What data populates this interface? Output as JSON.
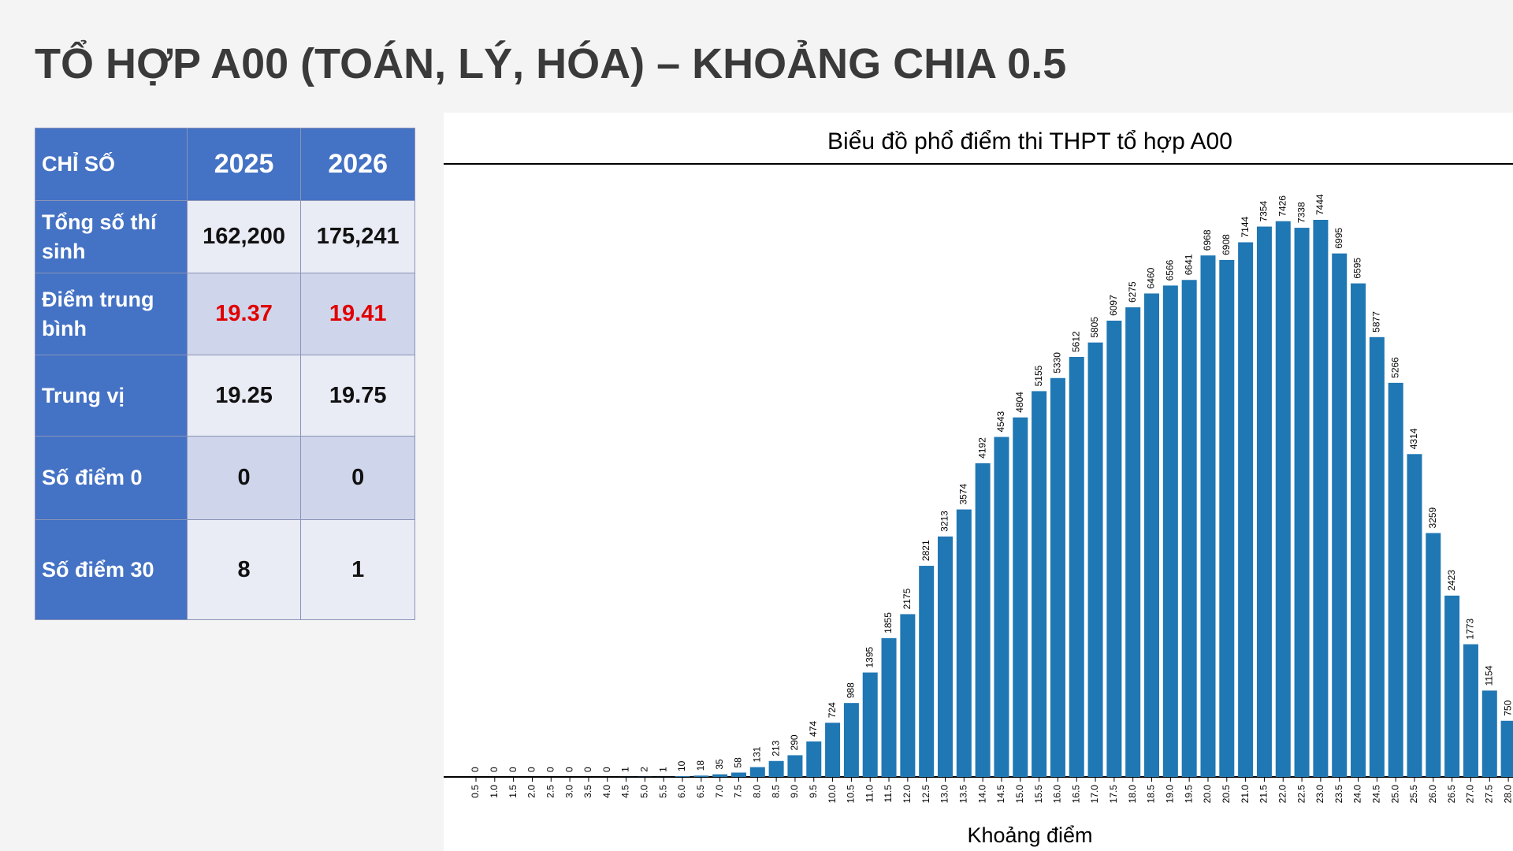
{
  "title": "TỔ HỢP A00 (TOÁN, LÝ, HÓA) – KHOẢNG CHIA 0.5",
  "table": {
    "header": [
      "CHỈ SỐ",
      "2025",
      "2026"
    ],
    "rows": [
      [
        "Tổng số thí sinh",
        "162,200",
        "175,241"
      ],
      [
        "Điểm trung bình",
        "19.37",
        "19.41"
      ],
      [
        "Trung vị",
        "19.25",
        "19.75"
      ],
      [
        "Số điểm 0",
        "0",
        "0"
      ],
      [
        "Số điểm 30",
        "8",
        "1"
      ]
    ]
  },
  "chart_data": {
    "type": "bar",
    "title": "Biểu đồ phổ điểm thi THPT tổ hợp A00",
    "x_label": "Khoảng điểm",
    "color": "#1f77b4",
    "categories": [
      "0.5",
      "1.0",
      "1.5",
      "2.0",
      "2.5",
      "3.0",
      "3.5",
      "4.0",
      "4.5",
      "5.0",
      "5.5",
      "6.0",
      "6.5",
      "7.0",
      "7.5",
      "8.0",
      "8.5",
      "9.0",
      "9.5",
      "10.0",
      "10.5",
      "11.0",
      "11.5",
      "12.0",
      "12.5",
      "13.0",
      "13.5",
      "14.0",
      "14.5",
      "15.0",
      "15.5",
      "16.0",
      "16.5",
      "17.0",
      "17.5",
      "18.0",
      "18.5",
      "19.0",
      "19.5",
      "20.0",
      "20.5",
      "21.0",
      "21.5",
      "22.0",
      "22.5",
      "23.0",
      "23.5",
      "24.0",
      "24.5",
      "25.0",
      "25.5",
      "26.0",
      "26.5",
      "27.0",
      "27.5",
      "28.0"
    ],
    "values": [
      0,
      0,
      0,
      0,
      0,
      0,
      0,
      0,
      1,
      2,
      1,
      10,
      18,
      35,
      58,
      131,
      213,
      290,
      474,
      724,
      988,
      1395,
      1855,
      2175,
      2821,
      3213,
      3574,
      4192,
      4543,
      4804,
      5155,
      5330,
      5612,
      5805,
      6097,
      6275,
      6460,
      6566,
      6641,
      6968,
      6908,
      7144,
      7354,
      7426,
      7338,
      7444,
      6995,
      6595,
      5877,
      5266,
      4314,
      3259,
      2423,
      1773,
      1154,
      750
    ]
  }
}
